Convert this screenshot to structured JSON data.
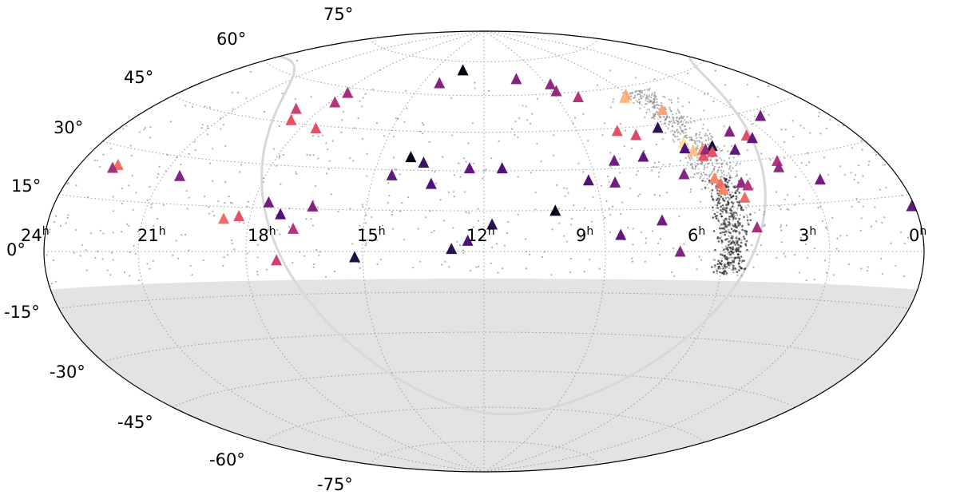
{
  "chart_data": {
    "type": "scatter",
    "projection": "aitoff",
    "x_axis": {
      "ticks": [
        "24",
        "21",
        "18",
        "15",
        "12",
        "9",
        "6",
        "3",
        "0"
      ],
      "unit": "h",
      "direction": "right-to-left"
    },
    "y_axis": {
      "ticks": [
        "75°",
        "60°",
        "45°",
        "30°",
        "15°",
        "0°",
        "-15°",
        "-30°",
        "-45°",
        "-60°",
        "-75°"
      ]
    },
    "dec_range": [
      -90,
      90
    ],
    "ra_range_h": [
      0,
      24
    ],
    "grid": true,
    "excluded_region": {
      "dec_max": -10,
      "color": "#e3e3e3"
    },
    "colors": {
      "frame": "#000000",
      "background": "#ffffff",
      "excluded": "#e3e3e3",
      "small_points": "#8c8c8c",
      "galactic_plane": "#d8d8d8",
      "colormap": "magma"
    },
    "series": [
      {
        "marker": "triangle",
        "points": [
          {
            "ra": 10.7,
            "dec": 71,
            "c": 0.05
          },
          {
            "ra": 13.7,
            "dec": 67,
            "c": 0.45
          },
          {
            "ra": 15.2,
            "dec": 64,
            "c": 0.5
          },
          {
            "ra": 15.2,
            "dec": 61,
            "c": 0.5
          },
          {
            "ra": 9.8,
            "dec": 65,
            "c": 0.45
          },
          {
            "ra": 15.9,
            "dec": 58,
            "c": 0.6
          },
          {
            "ra": 17.9,
            "dec": 57,
            "c": 0.85
          },
          {
            "ra": 17.7,
            "dec": 56,
            "c": 0.88
          },
          {
            "ra": 16.3,
            "dec": 44,
            "c": 0.7
          },
          {
            "ra": 16.8,
            "dec": 42,
            "c": 0.68
          },
          {
            "ra": 16.6,
            "dec": 34,
            "c": 0.35
          },
          {
            "ra": 15.7,
            "dec": 33,
            "c": 0.4
          },
          {
            "ra": 12.5,
            "dec": 31,
            "c": 0.3
          },
          {
            "ra": 11.6,
            "dec": 31,
            "c": 0.35
          },
          {
            "ra": 10.3,
            "dec": 33,
            "c": 0.25
          },
          {
            "ra": 9.9,
            "dec": 35,
            "c": 0.05
          },
          {
            "ra": 9.5,
            "dec": 28,
            "c": 0.35
          },
          {
            "ra": 10.6,
            "dec": 25,
            "c": 0.3
          },
          {
            "ra": 15.5,
            "dec": 25,
            "c": 0.4
          },
          {
            "ra": 14.8,
            "dec": 26,
            "c": 0.3
          },
          {
            "ra": 17.5,
            "dec": 27,
            "c": 0.45
          },
          {
            "ra": 18.1,
            "dec": 38,
            "c": 0.95
          },
          {
            "ra": 18.2,
            "dec": 35,
            "c": 0.9
          },
          {
            "ra": 18.0,
            "dec": 36,
            "c": 0.3
          },
          {
            "ra": 18.5,
            "dec": 35,
            "c": 0.8
          },
          {
            "ra": 18.4,
            "dec": 33,
            "c": 0.7
          },
          {
            "ra": 18.9,
            "dec": 36,
            "c": 0.15
          },
          {
            "ra": 18.6,
            "dec": 35,
            "c": 0.5
          },
          {
            "ra": 18.75,
            "dec": 34,
            "c": 0.7
          },
          {
            "ra": 19.5,
            "dec": 34,
            "c": 0.35
          },
          {
            "ra": 18.3,
            "dec": 25,
            "c": 0.8
          },
          {
            "ra": 18.4,
            "dec": 23,
            "c": 0.75
          },
          {
            "ra": 18.4,
            "dec": 21,
            "c": 0.8
          },
          {
            "ra": 19.0,
            "dec": 23,
            "c": 0.5
          },
          {
            "ra": 19.15,
            "dec": 22,
            "c": 0.6
          },
          {
            "ra": 18.9,
            "dec": 18,
            "c": 0.75
          },
          {
            "ra": 21.4,
            "dec": 22,
            "c": 0.4
          },
          {
            "ra": 19.0,
            "dec": 8,
            "c": 0.55
          },
          {
            "ra": 23.9,
            "dec": 12,
            "c": 0.35
          },
          {
            "ra": 16.5,
            "dec": 11,
            "c": 0.4
          },
          {
            "ra": 15.4,
            "dec": 6,
            "c": 0.35
          },
          {
            "ra": 16.9,
            "dec": 0,
            "c": 0.45
          },
          {
            "ra": 13.8,
            "dec": 15,
            "c": 0.05
          },
          {
            "ra": 12.2,
            "dec": 10,
            "c": 0.2
          },
          {
            "ra": 11.6,
            "dec": 4,
            "c": 0.3
          },
          {
            "ra": 11.2,
            "dec": 1,
            "c": 0.2
          },
          {
            "ra": 8.8,
            "dec": -2,
            "c": 0.15
          },
          {
            "ra": 6.8,
            "dec": -3,
            "c": 0.65
          },
          {
            "ra": 7.2,
            "dec": 8,
            "c": 0.6
          },
          {
            "ra": 7.6,
            "dec": 16,
            "c": 0.45
          },
          {
            "ra": 6.8,
            "dec": 13,
            "c": 0.3
          },
          {
            "ra": 6.4,
            "dec": 17,
            "c": 0.4
          },
          {
            "ra": 5.7,
            "dec": 12,
            "c": 0.7
          },
          {
            "ra": 5.3,
            "dec": 11,
            "c": 0.75
          },
          {
            "ra": 6.5,
            "dec": 44,
            "c": 0.7
          },
          {
            "ra": 5.4,
            "dec": 46,
            "c": 0.7
          },
          {
            "ra": 6.2,
            "dec": 54,
            "c": 0.6
          },
          {
            "ra": 5.1,
            "dec": 50,
            "c": 0.65
          },
          {
            "ra": 3.5,
            "dec": 24,
            "c": 0.45
          },
          {
            "ra": 1.3,
            "dec": 25,
            "c": 0.75
          },
          {
            "ra": 1.2,
            "dec": 24,
            "c": 0.55
          },
          {
            "ra": 6.2,
            "dec": 58,
            "c": 0.55
          },
          {
            "ra": 21.6,
            "dec": 43,
            "c": 0.4
          },
          {
            "ra": 20.3,
            "dec": 38,
            "c": 0.7
          },
          {
            "ra": 20.4,
            "dec": 37,
            "c": 0.35
          },
          {
            "ra": 19.9,
            "dec": 40,
            "c": 0.45
          },
          {
            "ra": 20.5,
            "dec": 29,
            "c": 0.6
          },
          {
            "ra": 20.4,
            "dec": 27,
            "c": 0.5
          },
          {
            "ra": 17.7,
            "dec": 44,
            "c": 0.2
          },
          {
            "ra": 18.5,
            "dec": 50,
            "c": 0.85
          }
        ]
      }
    ],
    "galactic_plane": true
  }
}
